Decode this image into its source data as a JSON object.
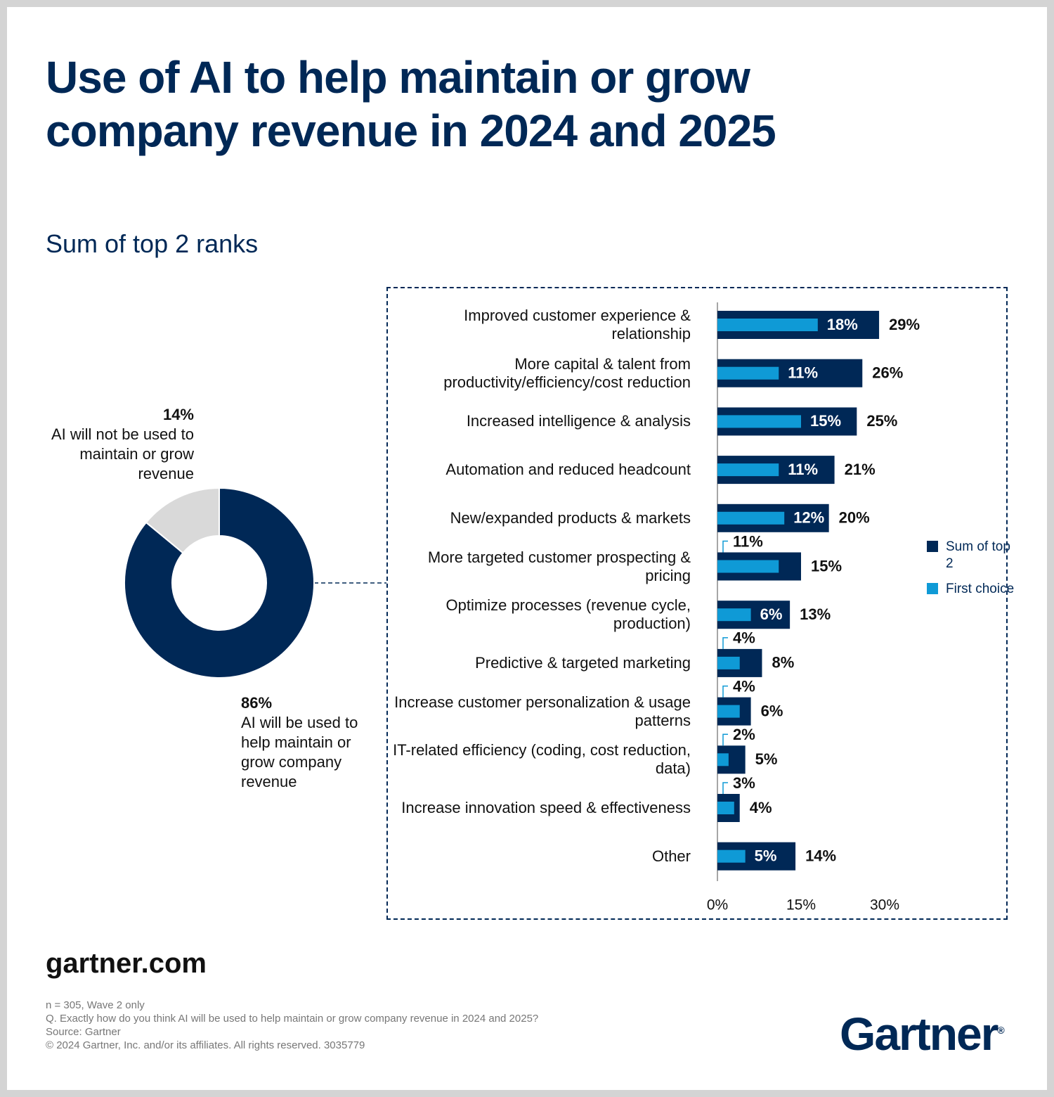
{
  "header": {
    "title": "Use of AI to help maintain or grow company revenue in 2024 and 2025",
    "subtitle": "Sum of top 2 ranks"
  },
  "chart_data": [
    {
      "type": "donut",
      "categories": [
        "AI will be used to help maintain or grow company revenue",
        "AI will not be used to maintain or grow revenue"
      ],
      "values": [
        86,
        14
      ],
      "value_labels": [
        "86%",
        "14%"
      ],
      "colors": [
        "#002856",
        "#d9d9d9"
      ]
    },
    {
      "type": "hbar",
      "categories": [
        "Improved customer experience & relationship",
        "More capital & talent from productivity/efficiency/cost reduction",
        "Increased intelligence & analysis",
        "Automation and reduced headcount",
        "New/expanded products & markets",
        "More targeted customer prospecting & pricing",
        "Optimize processes (revenue cycle, production)",
        "Predictive & targeted marketing",
        "Increase customer personalization & usage patterns",
        "IT-related efficiency (coding, cost reduction, data)",
        "Increase innovation speed & effectiveness",
        "Other"
      ],
      "series": [
        {
          "name": "Sum of top 2",
          "color": "#002856",
          "values": [
            29,
            26,
            25,
            21,
            20,
            15,
            13,
            8,
            6,
            5,
            4,
            14
          ],
          "value_labels": [
            "29%",
            "26%",
            "25%",
            "21%",
            "20%",
            "15%",
            "13%",
            "8%",
            "6%",
            "5%",
            "4%",
            "14%"
          ]
        },
        {
          "name": "First choice",
          "color": "#0f9ad6",
          "values": [
            18,
            11,
            15,
            11,
            12,
            11,
            6,
            4,
            4,
            2,
            3,
            5
          ],
          "value_labels": [
            "18%",
            "11%",
            "15%",
            "11%",
            "12%",
            "11%",
            "6%",
            "4%",
            "4%",
            "2%",
            "3%",
            "5%"
          ]
        }
      ],
      "xlim": [
        0,
        30
      ],
      "xticks": [
        {
          "value": 0,
          "label": "0%"
        },
        {
          "value": 15,
          "label": "15%"
        },
        {
          "value": 30,
          "label": "30%"
        }
      ],
      "legend": "right"
    }
  ],
  "footer": {
    "site": "gartner.com",
    "notes": [
      "n = 305, Wave 2 only",
      "Q. Exactly how do you think AI will be used to help maintain or grow company revenue in 2024 and 2025?",
      "Source: Gartner",
      "© 2024 Gartner, Inc. and/or its affiliates. All rights reserved. 3035779"
    ],
    "logo": "Gartner",
    "logo_mark": "®"
  }
}
